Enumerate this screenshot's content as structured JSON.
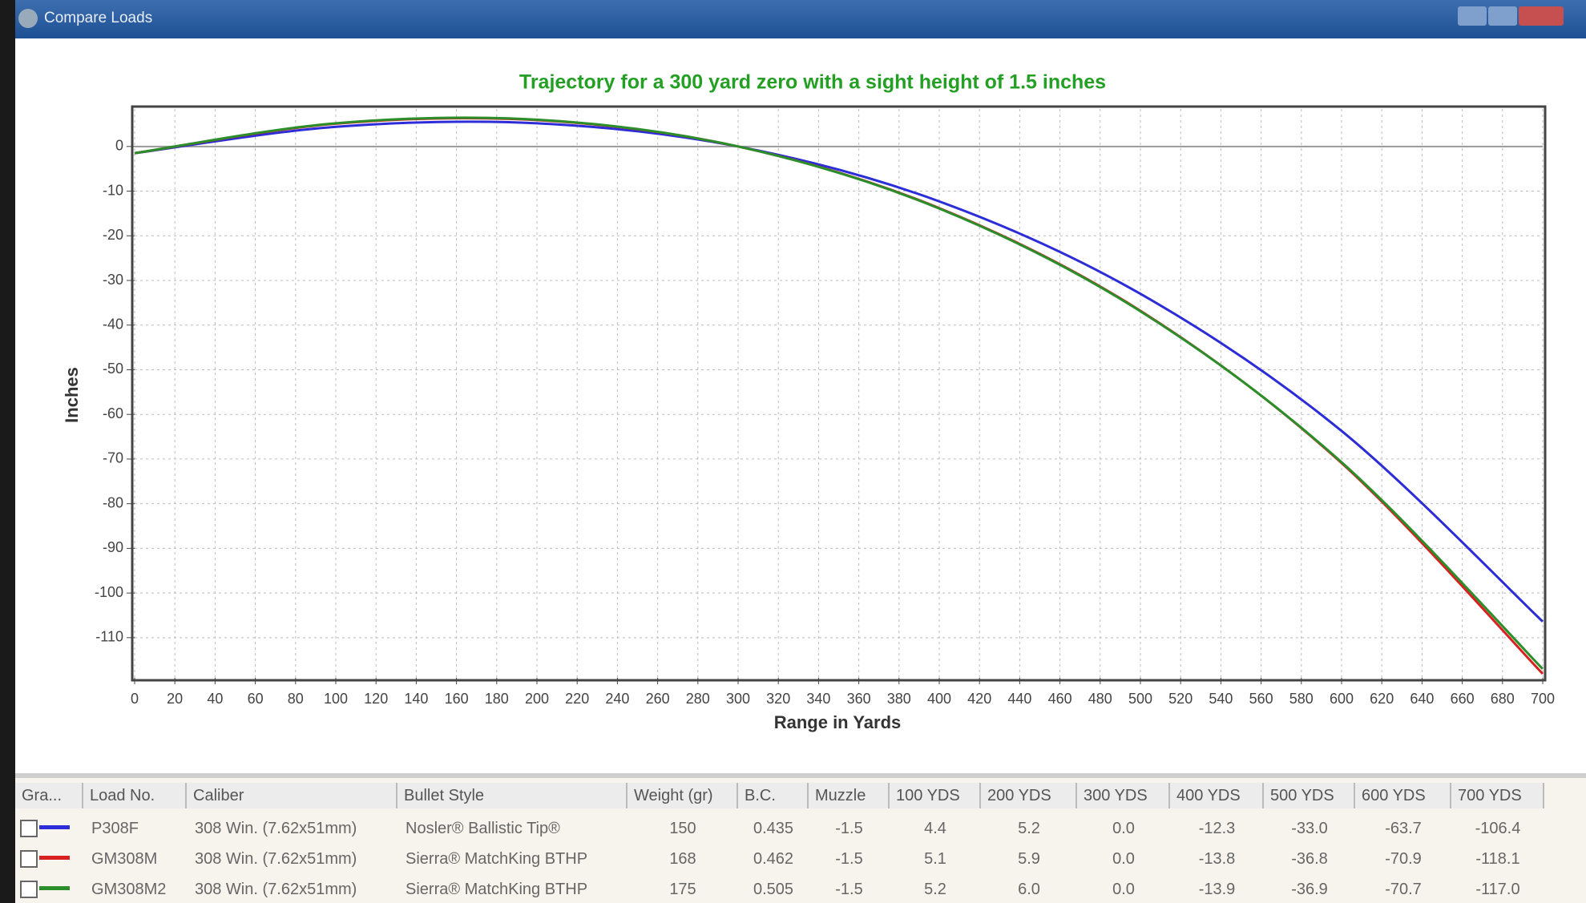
{
  "window": {
    "title": "Compare Loads"
  },
  "chart_data": {
    "type": "line",
    "title": "Trajectory for a 300 yard zero with a sight height of 1.5 inches",
    "x_label": "Range in Yards",
    "y_label": "Inches",
    "x": [
      0,
      100,
      200,
      300,
      400,
      500,
      600,
      700
    ],
    "series": [
      {
        "color": "#2c2cd8",
        "values": [
          -1.5,
          4.4,
          5.2,
          0.0,
          -12.3,
          -33.0,
          -63.7,
          -106.4
        ]
      },
      {
        "color": "#d82020",
        "values": [
          -1.5,
          5.1,
          5.9,
          0.0,
          -13.8,
          -36.8,
          -70.9,
          -118.1
        ]
      },
      {
        "color": "#2a8f2a",
        "values": [
          -1.5,
          5.2,
          6.0,
          0.0,
          -13.9,
          -36.9,
          -70.7,
          -117.0
        ]
      }
    ],
    "xlim": [
      0,
      700
    ],
    "ylim": [
      -119,
      8.4
    ],
    "xticks": [
      0,
      20,
      40,
      60,
      80,
      100,
      120,
      140,
      160,
      180,
      200,
      220,
      240,
      260,
      280,
      300,
      320,
      340,
      360,
      380,
      400,
      420,
      440,
      460,
      480,
      500,
      520,
      540,
      560,
      580,
      600,
      620,
      640,
      660,
      680,
      700
    ],
    "yticks": [
      0,
      -10,
      -20,
      -30,
      -40,
      -50,
      -60,
      -70,
      -80,
      -90,
      -100,
      -110
    ],
    "grid": true
  },
  "table": {
    "header": [
      "Gra...",
      "Load No.",
      "Caliber",
      "Bullet Style",
      "Weight (gr)",
      "B.C.",
      "Muzzle",
      "100 YDS",
      "200 YDS",
      "300 YDS",
      "400 YDS",
      "500 YDS",
      "600 YDS",
      "700 YDS"
    ],
    "rows": [
      [
        "P308F",
        "308 Win. (7.62x51mm)",
        "Nosler® Ballistic Tip®",
        "150",
        "0.435",
        "-1.5",
        "4.4",
        "5.2",
        "0.0",
        "-12.3",
        "-33.0",
        "-63.7",
        "-106.4"
      ],
      [
        "GM308M",
        "308 Win. (7.62x51mm)",
        "Sierra® MatchKing BTHP",
        "168",
        "0.462",
        "-1.5",
        "5.1",
        "5.9",
        "0.0",
        "-13.8",
        "-36.8",
        "-70.9",
        "-118.1"
      ],
      [
        "GM308M2",
        "308 Win. (7.62x51mm)",
        "Sierra® MatchKing BTHP",
        "175",
        "0.505",
        "-1.5",
        "5.2",
        "6.0",
        "0.0",
        "-13.9",
        "-36.9",
        "-70.7",
        "-117.0"
      ]
    ]
  }
}
